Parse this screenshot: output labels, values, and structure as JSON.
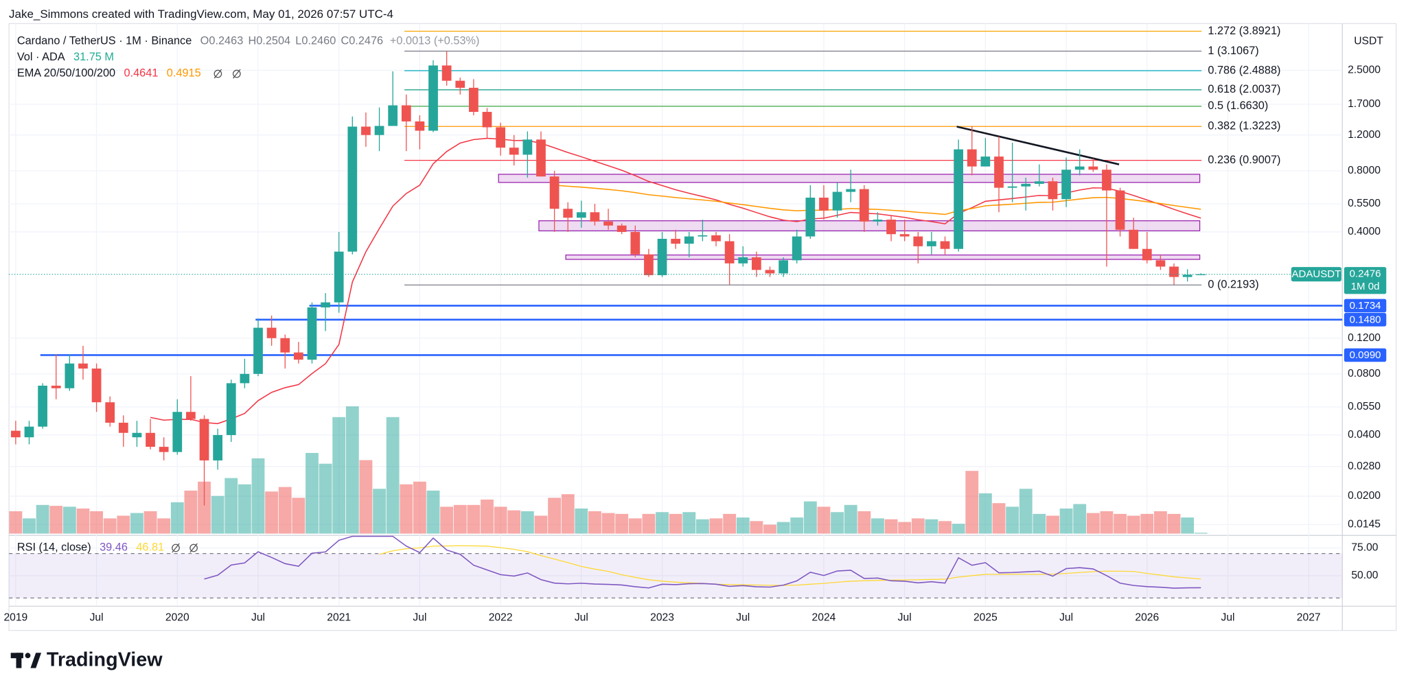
{
  "header": {
    "credit": "Jake_Simmons created with TradingView.com, May 01, 2026 07:57 UTC-4"
  },
  "chart_data": {
    "type": "candlestick",
    "title": "Cardano / TetherUS · 1M · Binance",
    "ohlc_labels": [
      "O",
      "H",
      "L",
      "C"
    ],
    "legend_ohlc_labels": [
      "0.2463",
      "0.2504",
      "0.2460",
      "0.2476"
    ],
    "change": "+0.0013 (+0.53%)",
    "symbol": "ADAUSDT",
    "interval_label": "1M 0d",
    "y_axis_title": "USDT",
    "log_scale": true,
    "grid": true,
    "up_color": "#26a69a",
    "down_color": "#ef5350",
    "x": [
      "2019-01",
      "2019-02",
      "2019-03",
      "2019-04",
      "2019-05",
      "2019-06",
      "2019-07",
      "2019-08",
      "2019-09",
      "2019-10",
      "2019-11",
      "2019-12",
      "2020-01",
      "2020-02",
      "2020-03",
      "2020-04",
      "2020-05",
      "2020-06",
      "2020-07",
      "2020-08",
      "2020-09",
      "2020-10",
      "2020-11",
      "2020-12",
      "2021-01",
      "2021-02",
      "2021-03",
      "2021-04",
      "2021-05",
      "2021-06",
      "2021-07",
      "2021-08",
      "2021-09",
      "2021-10",
      "2021-11",
      "2021-12",
      "2022-01",
      "2022-02",
      "2022-03",
      "2022-04",
      "2022-05",
      "2022-06",
      "2022-07",
      "2022-08",
      "2022-09",
      "2022-10",
      "2022-11",
      "2022-12",
      "2023-01",
      "2023-02",
      "2023-03",
      "2023-04",
      "2023-05",
      "2023-06",
      "2023-07",
      "2023-08",
      "2023-09",
      "2023-10",
      "2023-11",
      "2023-12",
      "2024-01",
      "2024-02",
      "2024-03",
      "2024-04",
      "2024-05",
      "2024-06",
      "2024-07",
      "2024-08",
      "2024-09",
      "2024-10",
      "2024-11",
      "2024-12",
      "2025-01",
      "2025-02",
      "2025-03",
      "2025-04",
      "2025-05",
      "2025-06",
      "2025-07",
      "2025-08",
      "2025-09",
      "2025-10",
      "2025-11",
      "2025-12",
      "2026-01",
      "2026-02",
      "2026-03",
      "2026-04",
      "2026-05"
    ],
    "open": [
      0.042,
      0.039,
      0.044,
      0.07,
      0.068,
      0.09,
      0.085,
      0.058,
      0.046,
      0.039,
      0.041,
      0.035,
      0.033,
      0.052,
      0.048,
      0.03,
      0.04,
      0.072,
      0.08,
      0.135,
      0.12,
      0.102,
      0.094,
      0.17,
      0.18,
      0.32,
      1.32,
      1.2,
      1.33,
      1.68,
      1.4,
      1.26,
      2.64,
      2.22,
      2.05,
      1.56,
      1.31,
      1.04,
      0.96,
      1.14,
      0.75,
      0.52,
      0.47,
      0.5,
      0.45,
      0.43,
      0.4,
      0.31,
      0.245,
      0.37,
      0.35,
      0.38,
      0.385,
      0.36,
      0.28,
      0.3,
      0.26,
      0.25,
      0.29,
      0.38,
      0.59,
      0.51,
      0.63,
      0.65,
      0.45,
      0.46,
      0.39,
      0.38,
      0.34,
      0.36,
      0.33,
      1.02,
      0.84,
      0.94,
      0.66,
      0.67,
      0.69,
      0.71,
      0.58,
      0.81,
      0.84,
      0.81,
      0.64,
      0.41,
      0.33,
      0.29,
      0.27,
      0.24,
      0.2463
    ],
    "high": [
      0.047,
      0.047,
      0.072,
      0.1,
      0.1,
      0.11,
      0.09,
      0.062,
      0.05,
      0.047,
      0.048,
      0.039,
      0.06,
      0.078,
      0.05,
      0.043,
      0.075,
      0.095,
      0.15,
      0.155,
      0.125,
      0.115,
      0.18,
      0.2,
      0.4,
      1.48,
      1.55,
      1.64,
      2.47,
      1.9,
      1.5,
      2.8,
      3.1,
      2.3,
      2.26,
      1.63,
      1.38,
      1.2,
      1.25,
      1.25,
      0.8,
      0.56,
      0.57,
      0.55,
      0.52,
      0.44,
      0.43,
      0.33,
      0.4,
      0.41,
      0.4,
      0.46,
      0.4,
      0.39,
      0.34,
      0.32,
      0.27,
      0.3,
      0.41,
      0.68,
      0.68,
      0.7,
      0.81,
      0.68,
      0.5,
      0.48,
      0.46,
      0.4,
      0.4,
      0.38,
      1.14,
      1.33,
      1.16,
      1.18,
      1.1,
      0.74,
      0.86,
      0.74,
      0.93,
      1.02,
      0.92,
      0.86,
      0.66,
      0.47,
      0.4,
      0.31,
      0.28,
      0.262,
      0.2504
    ],
    "low": [
      0.036,
      0.036,
      0.043,
      0.06,
      0.066,
      0.075,
      0.052,
      0.044,
      0.035,
      0.035,
      0.034,
      0.03,
      0.032,
      0.047,
      0.018,
      0.027,
      0.037,
      0.068,
      0.078,
      0.11,
      0.085,
      0.09,
      0.09,
      0.13,
      0.16,
      0.31,
      1.05,
      1.0,
      1.33,
      1.0,
      1.02,
      1.24,
      2.1,
      1.9,
      1.5,
      1.15,
      0.95,
      0.85,
      0.74,
      0.75,
      0.4,
      0.4,
      0.42,
      0.43,
      0.41,
      0.39,
      0.3,
      0.24,
      0.24,
      0.33,
      0.3,
      0.36,
      0.34,
      0.22,
      0.27,
      0.24,
      0.24,
      0.24,
      0.28,
      0.37,
      0.46,
      0.47,
      0.56,
      0.4,
      0.43,
      0.36,
      0.36,
      0.28,
      0.31,
      0.31,
      0.32,
      0.76,
      0.84,
      0.5,
      0.56,
      0.51,
      0.67,
      0.51,
      0.53,
      0.76,
      0.79,
      0.27,
      0.38,
      0.33,
      0.28,
      0.26,
      0.22,
      0.228,
      0.246
    ],
    "close": [
      0.039,
      0.044,
      0.07,
      0.068,
      0.09,
      0.085,
      0.058,
      0.046,
      0.041,
      0.041,
      0.035,
      0.033,
      0.052,
      0.048,
      0.03,
      0.04,
      0.072,
      0.08,
      0.135,
      0.12,
      0.102,
      0.094,
      0.17,
      0.18,
      0.32,
      1.32,
      1.2,
      1.33,
      1.68,
      1.4,
      1.26,
      2.64,
      2.22,
      2.05,
      1.56,
      1.31,
      1.04,
      0.96,
      1.14,
      0.75,
      0.52,
      0.47,
      0.5,
      0.45,
      0.43,
      0.4,
      0.31,
      0.245,
      0.37,
      0.35,
      0.38,
      0.385,
      0.36,
      0.28,
      0.3,
      0.26,
      0.25,
      0.29,
      0.38,
      0.59,
      0.51,
      0.63,
      0.65,
      0.45,
      0.46,
      0.39,
      0.38,
      0.34,
      0.36,
      0.33,
      1.02,
      0.84,
      0.94,
      0.66,
      0.67,
      0.69,
      0.71,
      0.58,
      0.81,
      0.84,
      0.81,
      0.64,
      0.41,
      0.33,
      0.29,
      0.27,
      0.24,
      0.2463,
      0.2476
    ],
    "volume": [
      800,
      544,
      1024,
      992,
      960,
      896,
      800,
      544,
      640,
      736,
      800,
      544,
      1120,
      1536,
      1856,
      1344,
      1984,
      1760,
      2688,
      1504,
      1664,
      1280,
      2880,
      2496,
      4160,
      4544,
      2624,
      1600,
      4160,
      1760,
      1856,
      1536,
      960,
      1024,
      1024,
      1216,
      960,
      832,
      800,
      640,
      1280,
      1408,
      896,
      800,
      736,
      704,
      544,
      704,
      768,
      704,
      768,
      512,
      544,
      704,
      576,
      448,
      320,
      416,
      576,
      1152,
      960,
      768,
      1024,
      800,
      544,
      512,
      416,
      544,
      512,
      448,
      352,
      2240,
      1440,
      1088,
      960,
      1600,
      704,
      640,
      896,
      1056,
      736,
      800,
      704,
      640,
      704,
      800,
      704,
      576,
      31.75
    ],
    "volume_legend": {
      "label": "Vol · ADA",
      "value_label": "31.75 M"
    },
    "xlim": [
      "2019-01",
      "2027-03"
    ],
    "xticks": [
      {
        "value": "2019-01",
        "label": "2019"
      },
      {
        "value": "2019-07",
        "label": "Jul"
      },
      {
        "value": "2020-01",
        "label": "2020"
      },
      {
        "value": "2020-07",
        "label": "Jul"
      },
      {
        "value": "2021-01",
        "label": "2021"
      },
      {
        "value": "2021-07",
        "label": "Jul"
      },
      {
        "value": "2022-01",
        "label": "2022"
      },
      {
        "value": "2022-07",
        "label": "Jul"
      },
      {
        "value": "2023-01",
        "label": "2023"
      },
      {
        "value": "2023-07",
        "label": "Jul"
      },
      {
        "value": "2024-01",
        "label": "2024"
      },
      {
        "value": "2024-07",
        "label": "Jul"
      },
      {
        "value": "2025-01",
        "label": "2025"
      },
      {
        "value": "2025-07",
        "label": "Jul"
      },
      {
        "value": "2026-01",
        "label": "2026"
      },
      {
        "value": "2026-07",
        "label": "Jul"
      },
      {
        "value": "2027-01",
        "label": "2027"
      }
    ],
    "ylim": [
      0.01282,
      4.243
    ],
    "yticks": [
      {
        "value": 2.5,
        "label": "2.5000"
      },
      {
        "value": 1.7,
        "label": "1.7000"
      },
      {
        "value": 1.2,
        "label": "1.2000"
      },
      {
        "value": 0.8,
        "label": "0.8000"
      },
      {
        "value": 0.55,
        "label": "0.5500"
      },
      {
        "value": 0.4,
        "label": "0.4000"
      },
      {
        "value": 0.12,
        "label": "0.1200"
      },
      {
        "value": 0.08,
        "label": "0.0800"
      },
      {
        "value": 0.055,
        "label": "0.0550"
      },
      {
        "value": 0.04,
        "label": "0.0400"
      },
      {
        "value": 0.028,
        "label": "0.0280"
      },
      {
        "value": 0.02,
        "label": "0.0200"
      },
      0.0145
    ],
    "ema": {
      "label": "EMA 20/50/100/200",
      "periods": [
        20,
        50
      ],
      "values": [
        0.4641,
        0.4915
      ],
      "colors": [
        "#f23645",
        "#ff9800"
      ]
    },
    "rsi": {
      "label": "RSI (14, close)",
      "period": 14,
      "value": 39.46,
      "ma_value": 46.81,
      "color": "#7e57c2",
      "ma_color": "#fdd835",
      "ylim": [
        23.4,
        85.5
      ],
      "yticks": [
        {
          "value": 75,
          "label": "75.00"
        },
        {
          "value": 50,
          "label": "50.00"
        }
      ],
      "levels": [
        70,
        30
      ]
    },
    "fib_levels": [
      {
        "label": "1.272 (3.8921)",
        "price": 3.8921,
        "color": "#f7a600"
      },
      {
        "label": "1 (3.1067)",
        "price": 3.1067,
        "color": "#787b86"
      },
      {
        "label": "0.786 (2.4888)",
        "price": 2.4888,
        "color": "#00acc1"
      },
      {
        "label": "0.618 (2.0037)",
        "price": 2.0037,
        "color": "#089981"
      },
      {
        "label": "0.5 (1.6630)",
        "price": 1.663,
        "color": "#4caf50"
      },
      {
        "label": "0.382 (1.3223)",
        "price": 1.3223,
        "color": "#ff9800"
      },
      {
        "label": "0.236 (0.9007)",
        "price": 0.9007,
        "color": "#f23645"
      },
      {
        "label": "0 (0.2193)",
        "price": 0.2193,
        "color": "#787b86"
      }
    ],
    "support_lines": [
      0.1734,
      {
        "value": 0.148,
        "label": "0.1480"
      },
      {
        "value": 0.099,
        "label": "0.0990"
      }
    ],
    "zones": [
      {
        "low": 0.701,
        "high": 0.769
      },
      {
        "low": 0.405,
        "high": 0.454
      },
      {
        "low": 0.293,
        "high": 0.308
      }
    ],
    "trendline": [
      1.32,
      0.86
    ]
  },
  "footer": {
    "logo": "TradingView"
  }
}
